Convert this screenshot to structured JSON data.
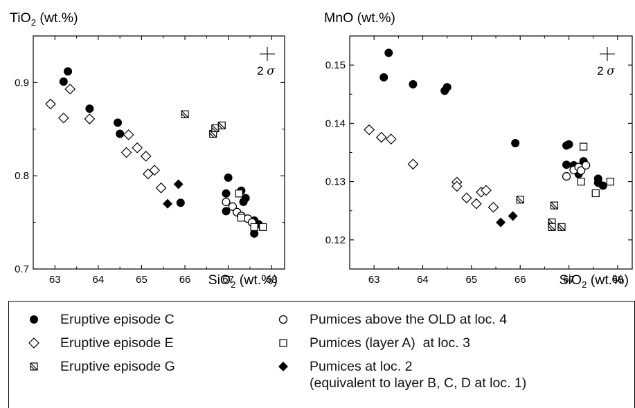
{
  "chart_data": [
    {
      "type": "scatter",
      "ylabel": {
        "main": "TiO",
        "sub": "2",
        "unit": " (wt.%)"
      },
      "xlabel": {
        "main": "SiO",
        "sub": "2",
        "unit": " (wt.%)"
      },
      "xlim": [
        62.5,
        68.3
      ],
      "ylim": [
        0.7,
        0.95
      ],
      "xticks": [
        "63",
        "64",
        "65",
        "66",
        "67",
        "68"
      ],
      "yticks": [
        "0.7",
        "0.8",
        "0.9"
      ],
      "error_bar_label": "2 σ",
      "series": [
        {
          "key": "C",
          "marker": "circle-filled",
          "points": [
            [
              63.2,
              0.901
            ],
            [
              63.3,
              0.912
            ],
            [
              63.8,
              0.872
            ],
            [
              64.45,
              0.857
            ],
            [
              64.5,
              0.845
            ],
            [
              65.9,
              0.771
            ],
            [
              67.0,
              0.798
            ],
            [
              66.95,
              0.781
            ],
            [
              66.95,
              0.762
            ],
            [
              67.3,
              0.784
            ],
            [
              67.4,
              0.776
            ],
            [
              67.35,
              0.772
            ],
            [
              67.6,
              0.752
            ],
            [
              67.6,
              0.738
            ],
            [
              67.7,
              0.748
            ]
          ]
        },
        {
          "key": "E",
          "marker": "diamond-open",
          "points": [
            [
              62.9,
              0.877
            ],
            [
              63.2,
              0.862
            ],
            [
              63.35,
              0.893
            ],
            [
              63.8,
              0.861
            ],
            [
              64.65,
              0.825
            ],
            [
              64.7,
              0.844
            ],
            [
              64.9,
              0.83
            ],
            [
              65.1,
              0.821
            ],
            [
              65.15,
              0.802
            ],
            [
              65.3,
              0.806
            ],
            [
              65.45,
              0.787
            ]
          ]
        },
        {
          "key": "G",
          "marker": "square-hatched",
          "points": [
            [
              66.0,
              0.866
            ],
            [
              66.65,
              0.845
            ],
            [
              66.7,
              0.851
            ],
            [
              66.85,
              0.854
            ]
          ]
        },
        {
          "key": "OLD",
          "marker": "circle-open",
          "points": [
            [
              66.95,
              0.772
            ],
            [
              67.1,
              0.767
            ],
            [
              67.2,
              0.761
            ],
            [
              67.3,
              0.757
            ],
            [
              67.45,
              0.754
            ],
            [
              67.55,
              0.75
            ]
          ]
        },
        {
          "key": "A",
          "marker": "square-open",
          "points": [
            [
              67.25,
              0.781
            ],
            [
              67.3,
              0.755
            ],
            [
              67.6,
              0.745
            ],
            [
              67.8,
              0.745
            ]
          ]
        },
        {
          "key": "BCD",
          "marker": "diamond-filled",
          "points": [
            [
              65.6,
              0.77
            ],
            [
              65.85,
              0.791
            ]
          ]
        }
      ]
    },
    {
      "type": "scatter",
      "ylabel": {
        "main": "MnO",
        "sub": "",
        "unit": " (wt.%)"
      },
      "xlabel": {
        "main": "SiO",
        "sub": "2",
        "unit": " (wt.%)"
      },
      "xlim": [
        62.5,
        68.3
      ],
      "ylim": [
        0.115,
        0.155
      ],
      "xticks": [
        "63",
        "64",
        "65",
        "66",
        "67",
        "68"
      ],
      "yticks": [
        "0.12",
        "0.13",
        "0.14",
        "0.15"
      ],
      "error_bar_label": "2 σ",
      "series": [
        {
          "key": "C",
          "marker": "circle-filled",
          "points": [
            [
              63.2,
              0.1479
            ],
            [
              63.3,
              0.1521
            ],
            [
              63.8,
              0.1467
            ],
            [
              64.45,
              0.1456
            ],
            [
              64.5,
              0.1462
            ],
            [
              65.9,
              0.1366
            ],
            [
              66.95,
              0.1362
            ],
            [
              67.0,
              0.1364
            ],
            [
              66.95,
              0.1329
            ],
            [
              67.1,
              0.1328
            ],
            [
              67.3,
              0.1335
            ],
            [
              67.2,
              0.1313
            ],
            [
              67.6,
              0.1305
            ],
            [
              67.6,
              0.1298
            ],
            [
              67.7,
              0.1293
            ]
          ]
        },
        {
          "key": "E",
          "marker": "diamond-open",
          "points": [
            [
              62.9,
              0.1389
            ],
            [
              63.15,
              0.1376
            ],
            [
              63.35,
              0.1373
            ],
            [
              63.8,
              0.133
            ],
            [
              64.7,
              0.1299
            ],
            [
              64.7,
              0.1292
            ],
            [
              64.9,
              0.1272
            ],
            [
              65.1,
              0.1262
            ],
            [
              65.2,
              0.1282
            ],
            [
              65.3,
              0.1285
            ],
            [
              65.45,
              0.1256
            ]
          ]
        },
        {
          "key": "G",
          "marker": "square-hatched",
          "points": [
            [
              66.0,
              0.1269
            ],
            [
              66.65,
              0.123
            ],
            [
              66.7,
              0.1259
            ],
            [
              66.65,
              0.1222
            ],
            [
              66.85,
              0.1222
            ]
          ]
        },
        {
          "key": "OLD",
          "marker": "circle-open",
          "points": [
            [
              66.95,
              0.1309
            ],
            [
              67.1,
              0.132
            ],
            [
              67.2,
              0.1325
            ],
            [
              67.25,
              0.1319
            ],
            [
              67.35,
              0.1328
            ]
          ]
        },
        {
          "key": "A",
          "marker": "square-open",
          "points": [
            [
              67.3,
              0.136
            ],
            [
              67.25,
              0.13
            ],
            [
              67.55,
              0.128
            ],
            [
              67.85,
              0.13
            ]
          ]
        },
        {
          "key": "BCD",
          "marker": "diamond-filled",
          "points": [
            [
              65.6,
              0.123
            ],
            [
              65.85,
              0.1241
            ]
          ]
        }
      ]
    }
  ],
  "legend": {
    "C": "Eruptive episode C",
    "E": "Eruptive episode E",
    "G": "Eruptive episode G",
    "OLD": "Pumices above the OLD at loc. 4",
    "A": "Pumices (layer A)  at loc. 3",
    "BCD_line1": "Pumices at loc. 2",
    "BCD_line2": "(equivalent to layer B, C, D at loc. 1)"
  }
}
